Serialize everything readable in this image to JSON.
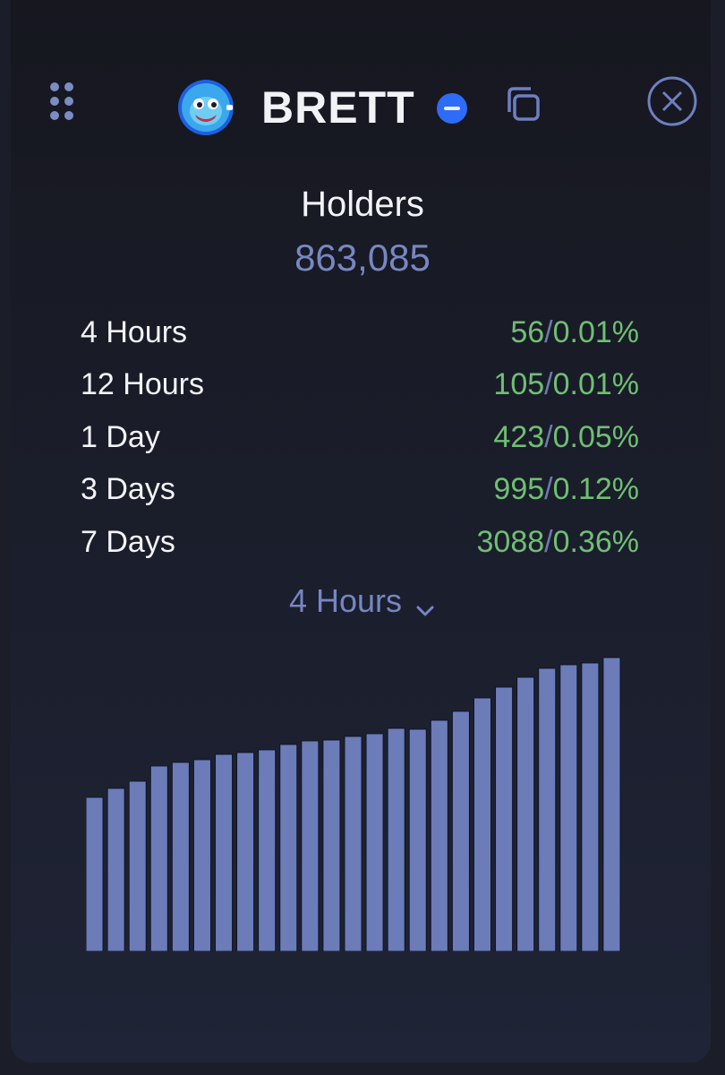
{
  "header": {
    "token_name": "BRETT",
    "icons": {
      "grip": "drag-grip-icon",
      "avatar": "brett-token-avatar",
      "chain": "chain-badge-icon",
      "copy": "copy-icon",
      "close": "close-circle-icon"
    }
  },
  "holders": {
    "title": "Holders",
    "count": "863,085"
  },
  "stats": [
    {
      "label": "4 Hours",
      "count": "56",
      "percent": "0.01%"
    },
    {
      "label": "12 Hours",
      "count": "105",
      "percent": "0.01%"
    },
    {
      "label": "1 Day",
      "count": "423",
      "percent": "0.05%"
    },
    {
      "label": "3 Days",
      "count": "995",
      "percent": "0.12%"
    },
    {
      "label": "7 Days",
      "count": "3088",
      "percent": "0.36%"
    }
  ],
  "separator": "/",
  "period_selector": {
    "selected": "4 Hours",
    "icon": "chevron-down-icon"
  },
  "colors": {
    "accent": "#7887c1",
    "positive": "#6fbf73",
    "bar": "#6b7cb8",
    "chain": "#2d6cf6"
  },
  "chart_data": {
    "type": "bar",
    "values": [
      172,
      182,
      190,
      207,
      211,
      214,
      220,
      222,
      225,
      231,
      235,
      236,
      240,
      243,
      249,
      248,
      258,
      268,
      283,
      295,
      306,
      316,
      320,
      322,
      328
    ],
    "ylim": [
      0,
      338
    ],
    "grid": false,
    "legend": "none"
  }
}
